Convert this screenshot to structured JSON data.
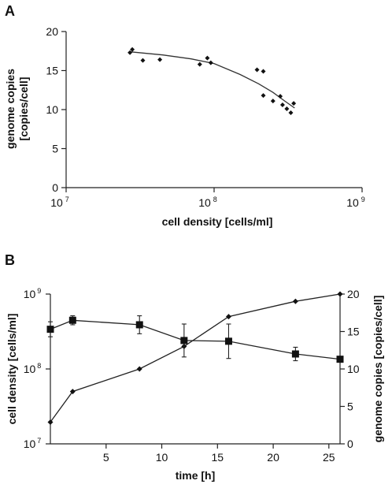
{
  "chart_data": [
    {
      "panel_label": "A",
      "type": "scatter",
      "x_scale": "log",
      "xlim": [
        10000000,
        1000000000
      ],
      "ylim": [
        0,
        20
      ],
      "x_ticks": [
        {
          "base": "10",
          "exp": "7",
          "value": 10000000
        },
        {
          "base": "10",
          "exp": "8",
          "value": 100000000
        },
        {
          "base": "10",
          "exp": "9",
          "value": 1000000000
        }
      ],
      "y_ticks": [
        "0",
        "5",
        "10",
        "15",
        "20"
      ],
      "xlabel": "cell density [cells/ml]",
      "ylabel_lines": [
        "genome copies",
        "[copies/cell]"
      ],
      "points": [
        {
          "x": 27000000,
          "y": 17.3
        },
        {
          "x": 28000000,
          "y": 17.7
        },
        {
          "x": 33000000,
          "y": 16.3
        },
        {
          "x": 43000000,
          "y": 16.4
        },
        {
          "x": 80000000,
          "y": 15.8
        },
        {
          "x": 90000000,
          "y": 16.6
        },
        {
          "x": 95000000,
          "y": 16.0
        },
        {
          "x": 195000000,
          "y": 15.1
        },
        {
          "x": 215000000,
          "y": 14.9
        },
        {
          "x": 215000000,
          "y": 11.8
        },
        {
          "x": 250000000,
          "y": 11.1
        },
        {
          "x": 280000000,
          "y": 11.7
        },
        {
          "x": 290000000,
          "y": 10.6
        },
        {
          "x": 310000000,
          "y": 10.1
        },
        {
          "x": 330000000,
          "y": 9.6
        },
        {
          "x": 345000000,
          "y": 10.8
        }
      ],
      "fit_curve": [
        {
          "x": 27000000,
          "y": 17.4
        },
        {
          "x": 45000000,
          "y": 17.0
        },
        {
          "x": 70000000,
          "y": 16.5
        },
        {
          "x": 100000000,
          "y": 15.9
        },
        {
          "x": 150000000,
          "y": 14.5
        },
        {
          "x": 200000000,
          "y": 13.3
        },
        {
          "x": 250000000,
          "y": 12.2
        },
        {
          "x": 300000000,
          "y": 11.1
        },
        {
          "x": 350000000,
          "y": 10.2
        }
      ]
    },
    {
      "panel_label": "B",
      "type": "line",
      "x": [
        0,
        2,
        8,
        12,
        16,
        22,
        26
      ],
      "xlim": [
        0,
        26
      ],
      "x_ticks": [
        "5",
        "10",
        "15",
        "20",
        "25"
      ],
      "xlabel": "time [h]",
      "left_axis": {
        "label": "cell density [cells/ml]",
        "scale": "log",
        "ylim": [
          10000000,
          1000000000
        ],
        "ticks": [
          {
            "base": "10",
            "exp": "7",
            "value": 10000000
          },
          {
            "base": "10",
            "exp": "8",
            "value": 100000000
          },
          {
            "base": "10",
            "exp": "9",
            "value": 1000000000
          }
        ]
      },
      "right_axis": {
        "label": "genome copies [copies/cell]",
        "ylim": [
          0,
          20
        ],
        "ticks": [
          "0",
          "5",
          "10",
          "15",
          "20"
        ]
      },
      "series": [
        {
          "marker": "diamond",
          "axis": "left",
          "values": [
            19500000,
            50000000,
            100000000,
            200000000,
            500000000,
            800000000,
            1000000000
          ]
        },
        {
          "marker": "square",
          "axis": "right",
          "values": [
            15.3,
            16.5,
            15.9,
            13.8,
            13.7,
            12.0,
            11.3
          ],
          "error": [
            1.0,
            0.6,
            1.2,
            2.2,
            2.3,
            0.9,
            0.3
          ]
        }
      ]
    }
  ]
}
